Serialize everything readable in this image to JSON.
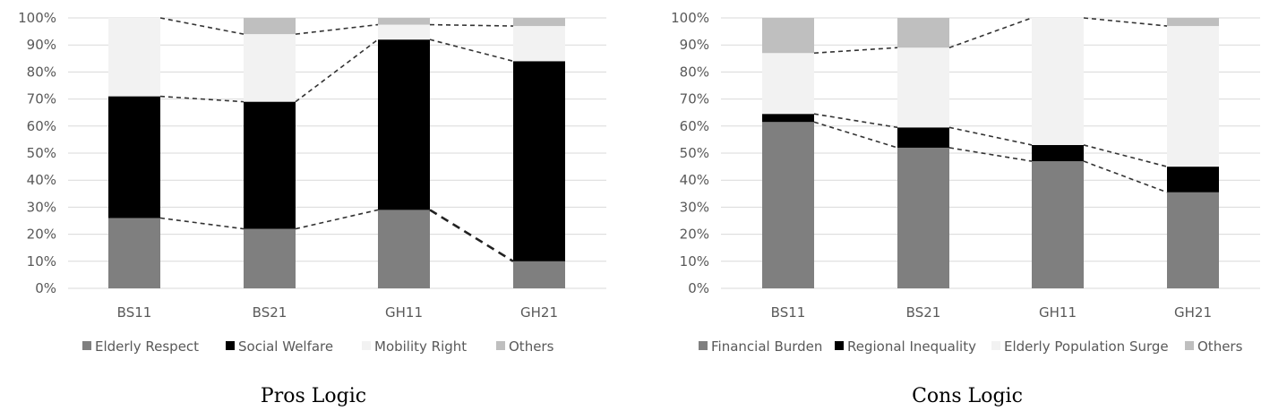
{
  "colors": {
    "Elderly Respect": "#7f7f7f",
    "Social Welfare": "#000000",
    "Mobility Right": "#f2f2f2",
    "Others": "#bfbfbf",
    "Financial Burden": "#7f7f7f",
    "Regional Inequality": "#000000",
    "Elderly Population Surge": "#f2f2f2"
  },
  "chart_data": [
    {
      "type": "bar",
      "stacked": true,
      "title": "Pros Logic",
      "categories": [
        "BS11",
        "BS21",
        "GH11",
        "GH21"
      ],
      "ylim": [
        0,
        100
      ],
      "yticks": [
        "0%",
        "10%",
        "20%",
        "30%",
        "40%",
        "50%",
        "60%",
        "70%",
        "80%",
        "90%",
        "100%"
      ],
      "grid": true,
      "legend_position": "bottom",
      "series": [
        {
          "name": "Elderly Respect",
          "values": [
            26,
            22,
            29,
            10
          ]
        },
        {
          "name": "Social Welfare",
          "values": [
            45,
            47,
            63,
            74
          ]
        },
        {
          "name": "Mobility Right",
          "values": [
            29,
            25,
            5.5,
            13
          ]
        },
        {
          "name": "Others",
          "values": [
            0,
            6,
            2.5,
            3
          ]
        }
      ]
    },
    {
      "type": "bar",
      "stacked": true,
      "title": "Cons Logic",
      "categories": [
        "BS11",
        "BS21",
        "GH11",
        "GH21"
      ],
      "ylim": [
        0,
        100
      ],
      "yticks": [
        "0%",
        "10%",
        "20%",
        "30%",
        "40%",
        "50%",
        "60%",
        "70%",
        "80%",
        "90%",
        "100%"
      ],
      "grid": true,
      "legend_position": "bottom",
      "series": [
        {
          "name": "Financial Burden",
          "values": [
            61.5,
            52,
            47,
            35.5
          ]
        },
        {
          "name": "Regional Inequality",
          "values": [
            3,
            7.5,
            6,
            9.5
          ]
        },
        {
          "name": "Elderly Population Surge",
          "values": [
            22.5,
            29.5,
            47,
            52
          ]
        },
        {
          "name": "Others",
          "values": [
            13,
            11,
            0,
            3
          ]
        }
      ]
    }
  ]
}
